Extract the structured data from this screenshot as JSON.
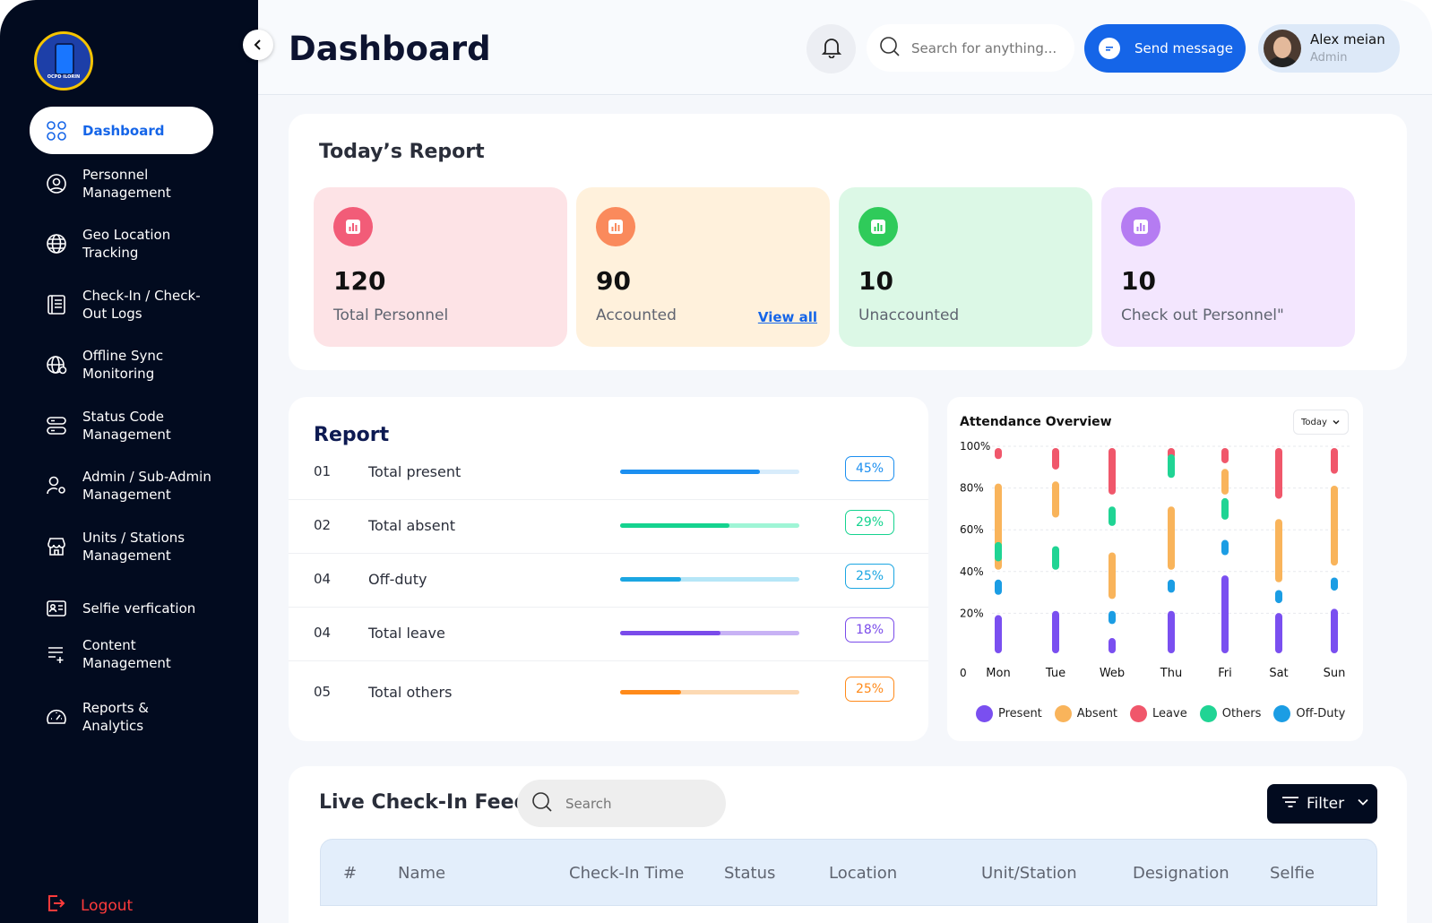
{
  "app": {
    "logo_text": "OCPD ILORIN"
  },
  "sidebar": {
    "items": [
      {
        "label": "Dashboard",
        "icon": "grid-icon",
        "active": true
      },
      {
        "label": "Personnel\nManagement",
        "icon": "user-circle-icon"
      },
      {
        "label": "Geo Location\nTracking",
        "icon": "globe-icon"
      },
      {
        "label": "Check-In / Check-\nOut Logs",
        "icon": "log-book-icon"
      },
      {
        "label": "Offline Sync\nMonitoring",
        "icon": "globe-sync-icon"
      },
      {
        "label": "Status Code\nManagement",
        "icon": "server-icon"
      },
      {
        "label": "Admin / Sub-Admin\nManagement",
        "icon": "user-settings-icon"
      },
      {
        "label": "Units / Stations\nManagement",
        "icon": "store-icon"
      },
      {
        "label": "Selfie verfication",
        "icon": "id-card-icon"
      },
      {
        "label": "Content\nManagement",
        "icon": "list-add-icon"
      },
      {
        "label": "Reports & Analytics",
        "icon": "gauge-icon"
      }
    ],
    "logout_label": "Logout"
  },
  "header": {
    "title": "Dashboard",
    "search_placeholder": "Search for anything...",
    "send_label": "Send message",
    "user_name": "Alex meian",
    "user_role": "Admin"
  },
  "today_report": {
    "title": "Today’s Report",
    "cards": [
      {
        "value": "120",
        "label": "Total Personnel",
        "bg": "#fde3e6",
        "icon_bg": "#f25c78"
      },
      {
        "value": "90",
        "label": "Accounted",
        "bg": "#fff1dc",
        "icon_bg": "#fa8a5c",
        "link": "View all"
      },
      {
        "value": "10",
        "label": "Unaccounted",
        "bg": "#dcf8e6",
        "icon_bg": "#2fcb5a"
      },
      {
        "value": "10",
        "label": "Check out Personnel\"",
        "bg": "#f3e6fe",
        "icon_bg": "#b57cf2"
      }
    ]
  },
  "report": {
    "title": "Report",
    "rows": [
      {
        "num": "01",
        "name": "Total present",
        "pct": "45%",
        "fill": 0.78,
        "color": "#1c8ff0",
        "track": "#d8ecfb"
      },
      {
        "num": "02",
        "name": "Total absent",
        "pct": "29%",
        "fill": 0.61,
        "color": "#15d38f",
        "track": "#9ff5d6"
      },
      {
        "num": "04",
        "name": "Off-duty",
        "pct": "25%",
        "fill": 0.34,
        "color": "#1ba6e2",
        "track": "#b6e6f7"
      },
      {
        "num": "04",
        "name": "Total leave",
        "pct": "18%",
        "fill": 0.56,
        "color": "#7a4bea",
        "track": "#c8b2f5"
      },
      {
        "num": "05",
        "name": "Total others",
        "pct": "25%",
        "fill": 0.34,
        "color": "#ff8a1a",
        "track": "#fcd9b3"
      }
    ]
  },
  "attendance": {
    "title": "Attendance Overview",
    "period": "Today"
  },
  "chart_data": {
    "type": "bar",
    "title": "Attendance Overview",
    "categories": [
      "Mon",
      "Tue",
      "Web",
      "Thu",
      "Fri",
      "Sat",
      "Sun"
    ],
    "y_ticks": [
      "100%",
      "80%",
      "60%",
      "40%",
      "20%",
      "0"
    ],
    "ylim": [
      0,
      100
    ],
    "series": [
      {
        "name": "Present",
        "color": "#7a4ff0",
        "values": [
          [
            0,
            20
          ],
          [
            0,
            22
          ],
          [
            0,
            9
          ],
          [
            0,
            22
          ],
          [
            0,
            39
          ],
          [
            0,
            21
          ],
          [
            0,
            23
          ]
        ]
      },
      {
        "name": "Absent",
        "color": "#f9b45b",
        "values": [
          [
            40,
            83
          ],
          [
            65,
            84
          ],
          [
            26,
            50
          ],
          [
            40,
            72
          ],
          [
            76,
            90
          ],
          [
            34,
            66
          ],
          [
            42,
            82
          ]
        ]
      },
      {
        "name": "Leave",
        "color": "#f0576b",
        "values": [
          [
            93,
            100
          ],
          [
            88,
            100
          ],
          [
            76,
            100
          ],
          [
            93,
            100
          ],
          [
            91,
            100
          ],
          [
            74,
            100
          ],
          [
            86,
            100
          ]
        ]
      },
      {
        "name": "Others",
        "color": "#20d494",
        "values": [
          [
            44,
            55
          ],
          [
            40,
            53
          ],
          [
            61,
            72
          ],
          [
            84,
            97
          ],
          [
            64,
            76
          ],
          [
            0,
            0
          ],
          [
            0,
            0
          ]
        ]
      },
      {
        "name": "Off-Duty",
        "color": "#1b9de4",
        "values": [
          [
            28,
            37
          ],
          [
            0,
            0
          ],
          [
            14,
            22
          ],
          [
            29,
            37
          ],
          [
            47,
            56
          ],
          [
            24,
            32
          ],
          [
            30,
            38
          ]
        ]
      }
    ]
  },
  "feed": {
    "title": "Live Check-In Feed",
    "search_placeholder": "Search",
    "filter_label": "Filter",
    "columns": [
      "#",
      "Name",
      "Check-In Time",
      "Status",
      "Location",
      "Unit/Station",
      "Designation",
      "Selfie"
    ]
  }
}
